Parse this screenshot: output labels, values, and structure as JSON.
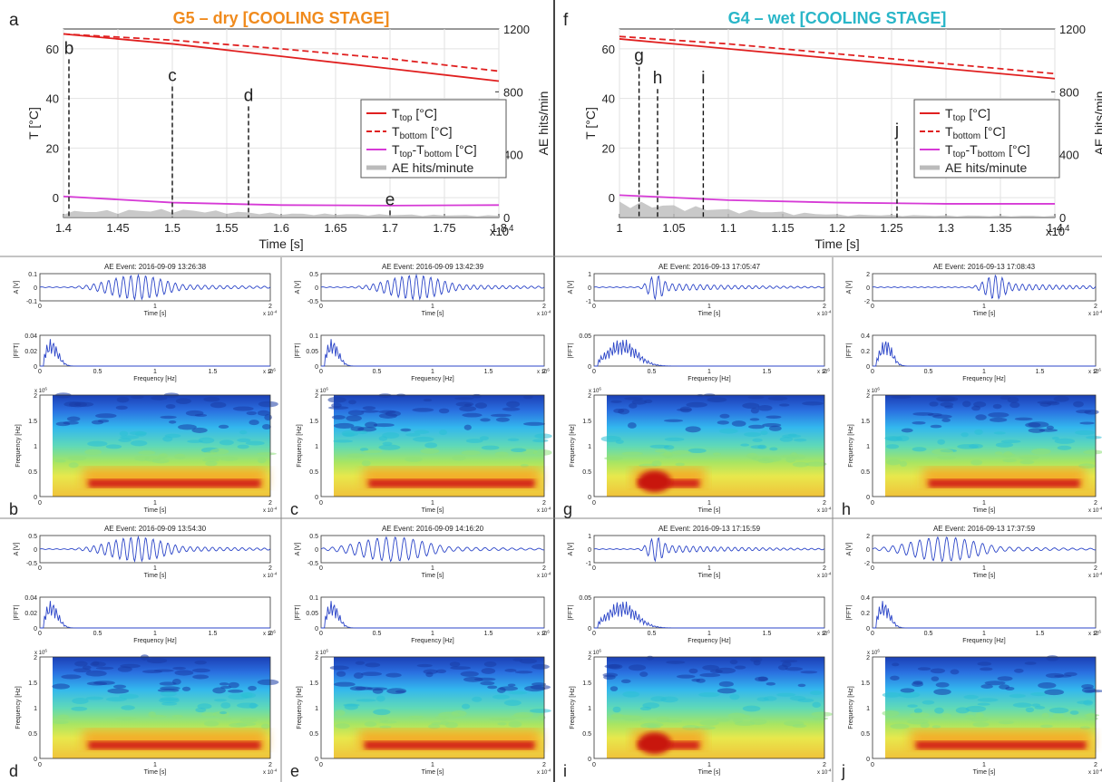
{
  "top_panels": [
    {
      "letter": "a",
      "title": "G5 – dry [COOLING STAGE]",
      "title_color": "#f08a1c",
      "xlabel": "Time [s]",
      "ylabel_left": "T [°C]",
      "ylabel_right": "AE hits/min",
      "x_exponent": "x10",
      "x_exponent_power": "4",
      "xlim": [
        1.4,
        1.8
      ],
      "xticks": [
        "1.4",
        "1.45",
        "1.5",
        "1.55",
        "1.6",
        "1.65",
        "1.7",
        "1.75",
        "1.8"
      ],
      "ylim_left": [
        -8,
        68
      ],
      "yticks_left": [
        "0",
        "20",
        "40",
        "60"
      ],
      "ylim_right": [
        0,
        1200
      ],
      "yticks_right": [
        "0",
        "400",
        "800",
        "1200"
      ],
      "legend": {
        "position": "right",
        "entries": [
          {
            "base": "T",
            "sub": "top",
            "suffix": " [°C]"
          },
          {
            "base": "T",
            "sub": "bottom",
            "suffix": " [°C]"
          },
          {
            "base": "T",
            "sub": "top",
            "mid": "-T",
            "sub2": "bottom",
            "suffix": " [°C]"
          },
          {
            "base": "AE hits/minute",
            "sub": "",
            "suffix": ""
          }
        ]
      },
      "markers": [
        {
          "label": "b",
          "x": 1.405,
          "label_y": 58
        },
        {
          "label": "c",
          "x": 1.5,
          "label_y": 47
        },
        {
          "label": "d",
          "x": 1.57,
          "label_y": 39
        },
        {
          "label": "e",
          "x": 1.7,
          "label_y": -3
        }
      ]
    },
    {
      "letter": "f",
      "title": "G4 – wet [COOLING STAGE]",
      "title_color": "#29b6c8",
      "xlabel": "Time [s]",
      "ylabel_left": "T [°C]",
      "ylabel_right": "AE hits/min",
      "x_exponent": "x10",
      "x_exponent_power": "4",
      "xlim": [
        1.0,
        1.4
      ],
      "xticks": [
        "1",
        "1.05",
        "1.1",
        "1.15",
        "1.2",
        "1.25",
        "1.3",
        "1.35",
        "1.4"
      ],
      "ylim_left": [
        -8,
        68
      ],
      "yticks_left": [
        "0",
        "20",
        "40",
        "60"
      ],
      "ylim_right": [
        0,
        1200
      ],
      "yticks_right": [
        "0",
        "400",
        "800",
        "1200"
      ],
      "legend": {
        "position": "right",
        "entries": [
          {
            "base": "T",
            "sub": "top",
            "suffix": " [°C]"
          },
          {
            "base": "T",
            "sub": "bottom",
            "suffix": " [°C]"
          },
          {
            "base": "T",
            "sub": "top",
            "mid": "-T",
            "sub2": "bottom",
            "suffix": " [°C]"
          },
          {
            "base": "AE hits/minute",
            "sub": "",
            "suffix": ""
          }
        ]
      },
      "markers": [
        {
          "label": "g",
          "x": 1.018,
          "label_y": 55
        },
        {
          "label": "h",
          "x": 1.035,
          "label_y": 46
        },
        {
          "label": "i",
          "x": 1.077,
          "label_y": 46
        },
        {
          "label": "j",
          "x": 1.255,
          "label_y": 25
        }
      ]
    }
  ],
  "chart_data": [
    {
      "type": "line",
      "panel": "a",
      "x": [
        1.4,
        1.5,
        1.6,
        1.7,
        1.8
      ],
      "series": [
        {
          "name": "Ttop [°C]",
          "color": "#e02020",
          "dash": false,
          "values": [
            66,
            62,
            57,
            52,
            47
          ]
        },
        {
          "name": "Tbottom [°C]",
          "color": "#e02020",
          "dash": true,
          "values": [
            66,
            63.5,
            60,
            56,
            51
          ]
        },
        {
          "name": "Ttop-Tbottom [°C]",
          "color": "#d63ad6",
          "dash": false,
          "values": [
            0.5,
            -2,
            -3,
            -3.2,
            -3
          ]
        },
        {
          "name": "AE hits/minute",
          "axis": "right",
          "color": "#bbbbbb",
          "values": [
            30,
            40,
            20,
            15,
            10
          ]
        }
      ]
    },
    {
      "type": "line",
      "panel": "f",
      "x": [
        1.0,
        1.1,
        1.2,
        1.3,
        1.4
      ],
      "series": [
        {
          "name": "Ttop [°C]",
          "color": "#e02020",
          "dash": false,
          "values": [
            64,
            60,
            56,
            52,
            48
          ]
        },
        {
          "name": "Tbottom [°C]",
          "color": "#e02020",
          "dash": true,
          "values": [
            65,
            62,
            58,
            54,
            50
          ]
        },
        {
          "name": "Ttop-Tbottom [°C]",
          "color": "#d63ad6",
          "dash": false,
          "values": [
            1,
            -1,
            -2,
            -2.5,
            -2.5
          ]
        },
        {
          "name": "AE hits/minute",
          "axis": "right",
          "color": "#bbbbbb",
          "values": [
            80,
            40,
            15,
            10,
            8
          ]
        }
      ]
    }
  ],
  "events": [
    {
      "letter": "b",
      "title": "AE Event: 2016-09-09 13:26:38",
      "a_ticks": [
        "0.1",
        "0",
        "-0.1"
      ],
      "fft_ticks": [
        "0.04",
        "0.02",
        "0"
      ],
      "kind": "wide"
    },
    {
      "letter": "c",
      "title": "AE Event: 2016-09-09 13:42:39",
      "a_ticks": [
        "0.5",
        "0",
        "-0.5"
      ],
      "fft_ticks": [
        "0.1",
        "0.05",
        "0"
      ],
      "kind": "wide"
    },
    {
      "letter": "g",
      "title": "AE Event: 2016-09-13 17:05:47",
      "a_ticks": [
        "1",
        "0",
        "-1"
      ],
      "fft_ticks": [
        "0.05",
        "0"
      ],
      "kind": "early"
    },
    {
      "letter": "h",
      "title": "AE Event: 2016-09-13 17:08:43",
      "a_ticks": [
        "2",
        "0",
        "-2"
      ],
      "fft_ticks": [
        "0.4",
        "0.2",
        "0"
      ],
      "kind": "mid"
    },
    {
      "letter": "d",
      "title": "AE Event: 2016-09-09 13:54:30",
      "a_ticks": [
        "0.5",
        "0",
        "-0.5"
      ],
      "fft_ticks": [
        "0.04",
        "0.02",
        "0"
      ],
      "kind": "wide"
    },
    {
      "letter": "e",
      "title": "AE Event: 2016-09-09 14:16:20",
      "a_ticks": [
        "0.5",
        "0",
        "-0.5"
      ],
      "fft_ticks": [
        "0.1",
        "0.05",
        "0"
      ],
      "kind": "long"
    },
    {
      "letter": "i",
      "title": "AE Event: 2016-09-13 17:15:59",
      "a_ticks": [
        "1",
        "0",
        "-1"
      ],
      "fft_ticks": [
        "0.05",
        "0"
      ],
      "kind": "early"
    },
    {
      "letter": "j",
      "title": "AE Event: 2016-09-13 17:37:59",
      "a_ticks": [
        "2",
        "0",
        "-2"
      ],
      "fft_ticks": [
        "0.4",
        "0.2",
        "0"
      ],
      "kind": "long"
    }
  ],
  "event_axes": {
    "time_label": "Time [s]",
    "freq_label": "Frequency [Hz]",
    "a_label": "A [V]",
    "fft_label": "|FFT|",
    "spec_label": "Frequency [Hz]",
    "time_ticks": [
      "0",
      "1",
      "2"
    ],
    "time_exp": "x 10",
    "time_exp_power": "-4",
    "freq_ticks": [
      "0",
      "0.5",
      "1",
      "1.5",
      "2"
    ],
    "freq_exp": "x 10",
    "freq_exp_power": "6",
    "spec_yticks": [
      "0",
      "0.5",
      "1",
      "1.5",
      "2"
    ],
    "spec_yexp": "x 10",
    "spec_yexp_power": "6"
  }
}
